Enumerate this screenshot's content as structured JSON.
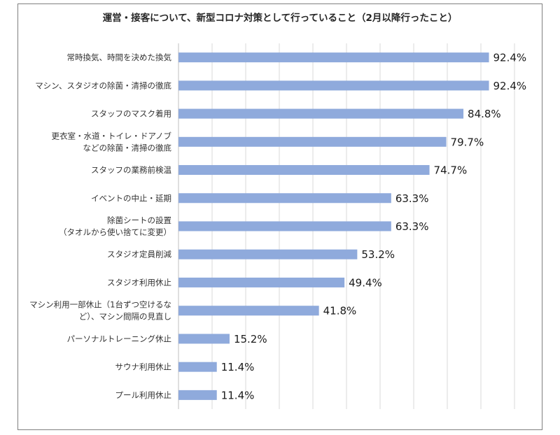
{
  "chart_data": {
    "type": "bar",
    "orientation": "horizontal",
    "title": "運営・接客について、新型コロナ対策として行っていること（2月以降行ったこと）",
    "xlabel": "",
    "ylabel": "",
    "xlim": [
      0,
      100
    ],
    "grid": true,
    "bar_color": "#8faadc",
    "categories": [
      [
        "常時換気、時間を決めた換気"
      ],
      [
        "マシン、スタジオの除菌・清掃の徹底"
      ],
      [
        "スタッフのマスク着用"
      ],
      [
        "更衣室・水道・トイレ・ドアノブ",
        "などの除菌・清掃の徹底"
      ],
      [
        "スタッフの業務前検温"
      ],
      [
        "イベントの中止・延期"
      ],
      [
        "除菌シートの設置",
        "（タオルから使い捨てに変更）"
      ],
      [
        "スタジオ定員削減"
      ],
      [
        "スタジオ利用休止"
      ],
      [
        "マシン利用一部休止（1台ずつ空けるな",
        "ど）、マシン間隔の見直し"
      ],
      [
        "パーソナルトレーニング休止"
      ],
      [
        "サウナ利用休止"
      ],
      [
        "プール利用休止"
      ]
    ],
    "values": [
      92.4,
      92.4,
      84.8,
      79.7,
      74.7,
      63.3,
      63.3,
      53.2,
      49.4,
      41.8,
      15.2,
      11.4,
      11.4
    ],
    "value_labels": [
      "92.4%",
      "92.4%",
      "84.8%",
      "79.7%",
      "74.7%",
      "63.3%",
      "63.3%",
      "53.2%",
      "49.4%",
      "41.8%",
      "15.2%",
      "11.4%",
      "11.4%"
    ]
  }
}
